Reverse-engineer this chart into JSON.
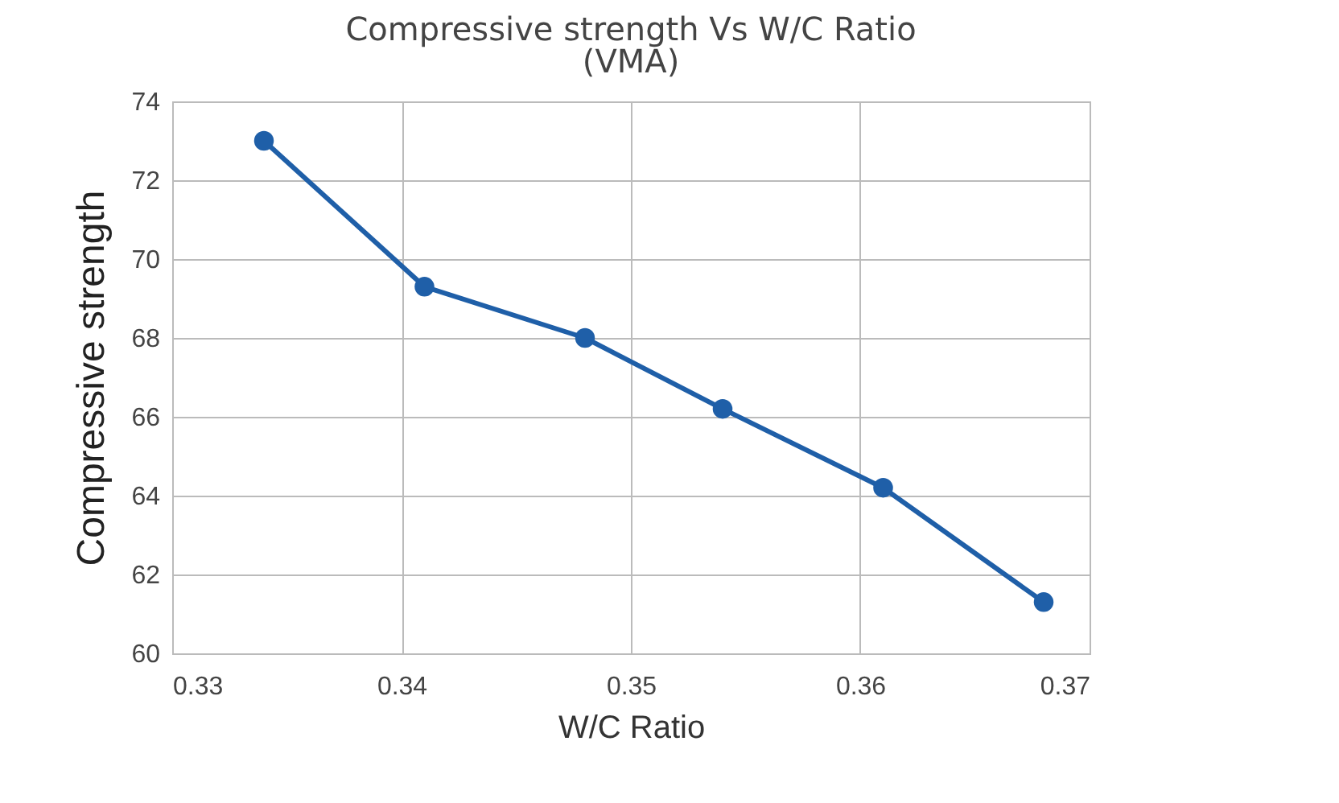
{
  "chart_data": {
    "type": "line",
    "title": "Compressive strength Vs W/C Ratio",
    "subtitle": "(VMA)",
    "xlabel": "W/C Ratio",
    "ylabel": "Compressive strength",
    "x": [
      0.334,
      0.341,
      0.348,
      0.354,
      0.361,
      0.368
    ],
    "series": [
      {
        "color": "#1f5fa8",
        "values": [
          73.0,
          69.3,
          68.0,
          66.2,
          64.2,
          61.3
        ]
      }
    ],
    "xlim": [
      0.33,
      0.37
    ],
    "xticks": [
      0.33,
      0.34,
      0.35,
      0.36,
      0.37
    ],
    "ylim": [
      60,
      74
    ],
    "yticks": [
      60,
      62,
      64,
      66,
      68,
      70,
      72,
      74
    ],
    "grid": true,
    "marker": "circle",
    "legend": false
  }
}
